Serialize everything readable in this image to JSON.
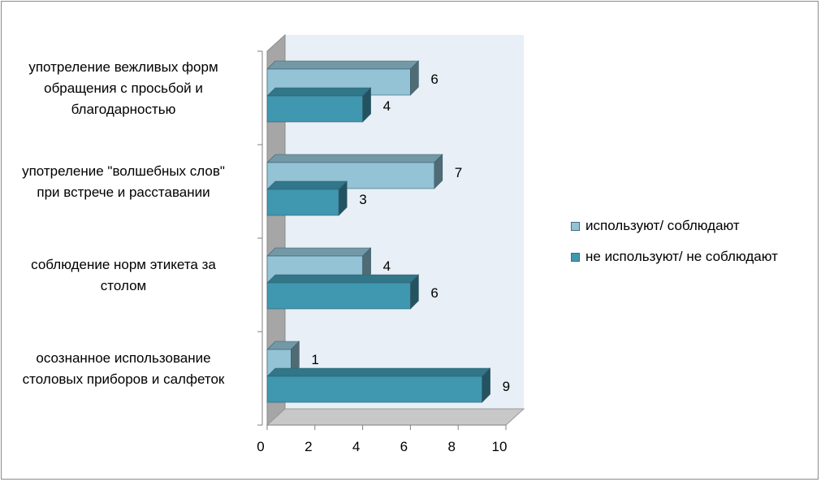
{
  "chart_data": {
    "type": "bar",
    "orientation": "horizontal",
    "style": "3d",
    "categories": [
      "употреление вежливых форм обращения с просьбой и благодарностью",
      "употреление \"волшебных слов\" при встрече и расставании",
      "соблюдение норм этикета за столом",
      "осознанное использование столовых приборов и салфеток"
    ],
    "category_lines": [
      [
        "употреление вежливых форм",
        "обращения с просьбой и",
        "благодарностью"
      ],
      [
        "употреление \"волшебных слов\"",
        "при встрече и расставании"
      ],
      [
        "соблюдение норм этикета за",
        "столом"
      ],
      [
        "осознанное использование",
        "столовых приборов и салфеток"
      ]
    ],
    "series": [
      {
        "name": "используют/ соблюдают",
        "values": [
          6,
          7,
          4,
          1
        ],
        "color": "#93c3d5"
      },
      {
        "name": "не используют/ не соблюдают",
        "values": [
          4,
          3,
          6,
          9
        ],
        "color": "#3f97b0"
      }
    ],
    "data_labels": {
      "s0": [
        "6",
        "7",
        "4",
        "1"
      ],
      "s1": [
        "4",
        "3",
        "6",
        "9"
      ]
    },
    "x_ticks": [
      "0",
      "2",
      "4",
      "6",
      "8",
      "10"
    ],
    "xlim": [
      0,
      10
    ],
    "legend_position": "right",
    "wall_color": "#e8eff6",
    "side_wall_color": "#a6a6a6",
    "floor_color": "#c8c8c8"
  }
}
